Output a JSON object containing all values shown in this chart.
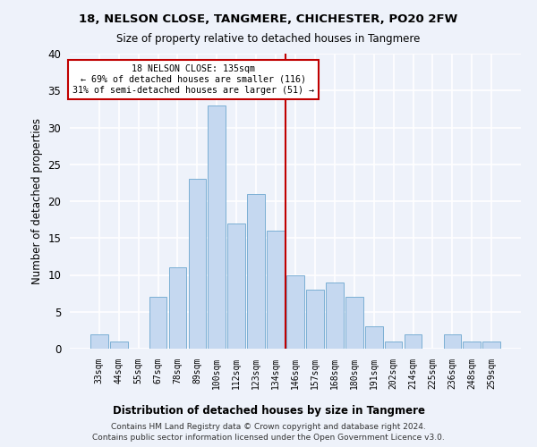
{
  "title": "18, NELSON CLOSE, TANGMERE, CHICHESTER, PO20 2FW",
  "subtitle": "Size of property relative to detached houses in Tangmere",
  "xlabel": "Distribution of detached houses by size in Tangmere",
  "ylabel": "Number of detached properties",
  "bar_labels": [
    "33sqm",
    "44sqm",
    "55sqm",
    "67sqm",
    "78sqm",
    "89sqm",
    "100sqm",
    "112sqm",
    "123sqm",
    "134sqm",
    "146sqm",
    "157sqm",
    "168sqm",
    "180sqm",
    "191sqm",
    "202sqm",
    "214sqm",
    "225sqm",
    "236sqm",
    "248sqm",
    "259sqm"
  ],
  "bar_values": [
    2,
    1,
    0,
    7,
    11,
    23,
    33,
    17,
    21,
    16,
    10,
    8,
    9,
    7,
    3,
    1,
    2,
    0,
    2,
    1,
    1
  ],
  "bar_color": "#c5d8f0",
  "bar_edge_color": "#7bafd4",
  "vline_color": "#c00000",
  "annotation_box_edge_color": "#c00000",
  "background_color": "#eef2fa",
  "grid_color": "#ffffff",
  "ylim": [
    0,
    40
  ],
  "yticks": [
    0,
    5,
    10,
    15,
    20,
    25,
    30,
    35,
    40
  ],
  "property_line_label": "18 NELSON CLOSE: 135sqm",
  "annotation_line1": "← 69% of detached houses are smaller (116)",
  "annotation_line2": "31% of semi-detached houses are larger (51) →",
  "footer_line1": "Contains HM Land Registry data © Crown copyright and database right 2024.",
  "footer_line2": "Contains public sector information licensed under the Open Government Licence v3.0.",
  "vline_index": 9.5
}
